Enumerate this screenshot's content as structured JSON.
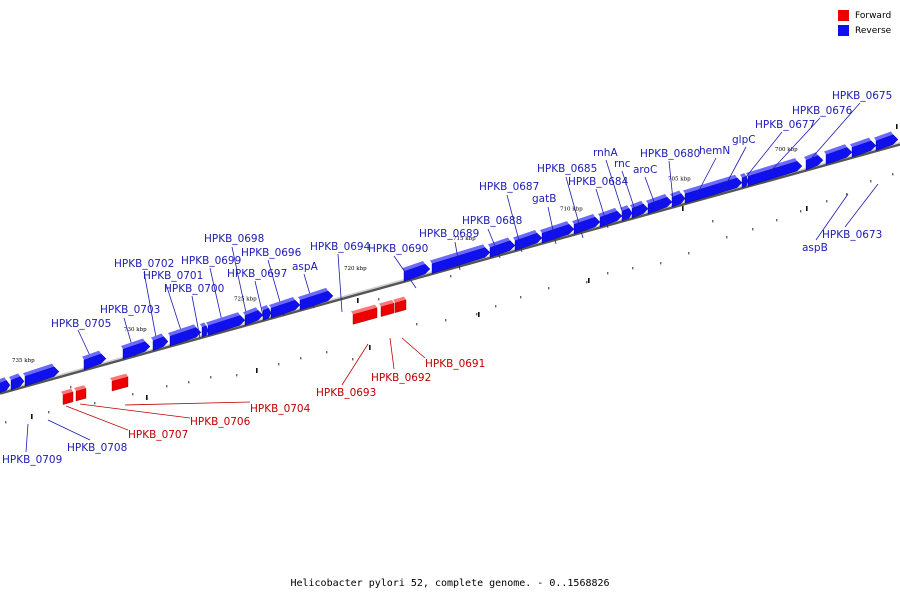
{
  "legend": [
    {
      "label": "Forward",
      "color": "#ee0000"
    },
    {
      "label": "Reverse",
      "color": "#1010ee"
    }
  ],
  "caption": "Helicobacter pylori 52, complete genome. - 0..1568826",
  "colors": {
    "forward": "#ee0000",
    "reverse": "#1010ee",
    "forward_label": "#c00000",
    "reverse_label": "#1c1cb4",
    "backbone": "#888888"
  },
  "ticks": [
    "735 kbp",
    "730 kbp",
    "725 kbp",
    "720 kbp",
    "715 kbp",
    "710 kbp",
    "705 kbp",
    "700 kbp"
  ],
  "genes": [
    {
      "name": "HPKB_0709",
      "strand": "reverse"
    },
    {
      "name": "HPKB_0708",
      "strand": "reverse"
    },
    {
      "name": "HPKB_0707",
      "strand": "forward"
    },
    {
      "name": "HPKB_0706",
      "strand": "forward"
    },
    {
      "name": "HPKB_0705",
      "strand": "reverse"
    },
    {
      "name": "HPKB_0704",
      "strand": "forward"
    },
    {
      "name": "HPKB_0703",
      "strand": "reverse"
    },
    {
      "name": "HPKB_0702",
      "strand": "reverse"
    },
    {
      "name": "HPKB_0701",
      "strand": "reverse"
    },
    {
      "name": "HPKB_0700",
      "strand": "reverse"
    },
    {
      "name": "HPKB_0699",
      "strand": "reverse"
    },
    {
      "name": "HPKB_0698",
      "strand": "reverse"
    },
    {
      "name": "HPKB_0697",
      "strand": "reverse"
    },
    {
      "name": "HPKB_0696",
      "strand": "reverse"
    },
    {
      "name": "aspA",
      "strand": "reverse"
    },
    {
      "name": "HPKB_0694",
      "strand": "reverse"
    },
    {
      "name": "HPKB_0693",
      "strand": "forward"
    },
    {
      "name": "HPKB_0692",
      "strand": "forward"
    },
    {
      "name": "HPKB_0691",
      "strand": "forward"
    },
    {
      "name": "HPKB_0690",
      "strand": "reverse"
    },
    {
      "name": "HPKB_0689",
      "strand": "reverse"
    },
    {
      "name": "HPKB_0688",
      "strand": "reverse"
    },
    {
      "name": "HPKB_0687",
      "strand": "reverse"
    },
    {
      "name": "gatB",
      "strand": "reverse"
    },
    {
      "name": "HPKB_0685",
      "strand": "reverse"
    },
    {
      "name": "HPKB_0684",
      "strand": "reverse"
    },
    {
      "name": "rnhA",
      "strand": "reverse"
    },
    {
      "name": "rnc",
      "strand": "reverse"
    },
    {
      "name": "aroC",
      "strand": "reverse"
    },
    {
      "name": "HPKB_0680",
      "strand": "reverse"
    },
    {
      "name": "hemN",
      "strand": "reverse"
    },
    {
      "name": "glpC",
      "strand": "reverse"
    },
    {
      "name": "HPKB_0677",
      "strand": "reverse"
    },
    {
      "name": "HPKB_0676",
      "strand": "reverse"
    },
    {
      "name": "HPKB_0675",
      "strand": "reverse"
    },
    {
      "name": "aspB",
      "strand": "reverse"
    },
    {
      "name": "HPKB_0673",
      "strand": "reverse"
    }
  ]
}
